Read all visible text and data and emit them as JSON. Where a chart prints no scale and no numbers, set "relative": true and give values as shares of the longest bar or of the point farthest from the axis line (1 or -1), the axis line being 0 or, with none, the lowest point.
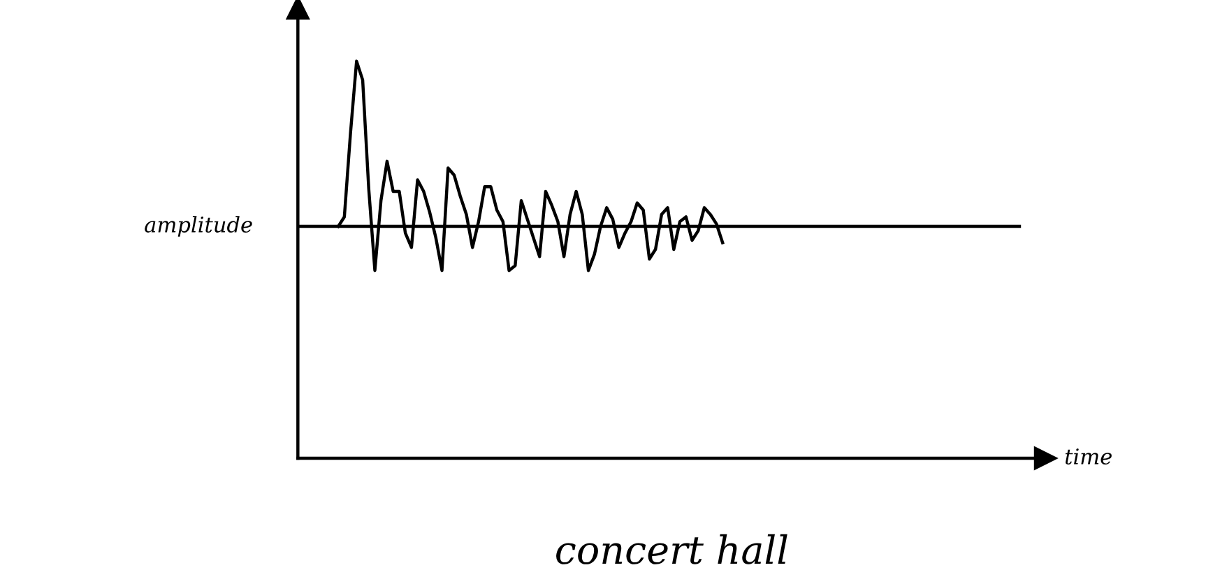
{
  "chart_data": {
    "type": "line",
    "title": "concert hall",
    "annotations": [
      "time"
    ],
    "ylabel": "amplitude",
    "relative": true,
    "categories": [
      null,
      null,
      null,
      null,
      null,
      null,
      null,
      null,
      null,
      null,
      null,
      null,
      null,
      null,
      null,
      null,
      null,
      null,
      null,
      null,
      null,
      null,
      null,
      null,
      null,
      null,
      null,
      null,
      null,
      null,
      null,
      null,
      null,
      null,
      null,
      null,
      null,
      null,
      null,
      null,
      null,
      null,
      null,
      null,
      null,
      null,
      null,
      null,
      null,
      null,
      null,
      null,
      null,
      null,
      null,
      null,
      null,
      null,
      null,
      null,
      null,
      null,
      null,
      null
    ],
    "series": [
      {
        "color": "#000000",
        "values": [
          0.584,
          0.608,
          0.818,
          1,
          0.953,
          0.678,
          0.473,
          0.649,
          0.748,
          0.672,
          0.672,
          0.567,
          0.531,
          0.701,
          0.672,
          0.619,
          0.555,
          0.473,
          0.731,
          0.713,
          0.66,
          0.614,
          0.531,
          0.596,
          0.684,
          0.684,
          0.625,
          0.596,
          0.473,
          0.485,
          0.649,
          0.602,
          0.555,
          0.508,
          0.672,
          0.637,
          0.596,
          0.508,
          0.614,
          0.672,
          0.614,
          0.473,
          0.514,
          0.584,
          0.631,
          0.602,
          0.531,
          0.567,
          0.596,
          0.643,
          0.625,
          0.502,
          0.526,
          0.614,
          0.631,
          0.526,
          0.596,
          0.608,
          0.549,
          0.573,
          0.631,
          0.614,
          0.59,
          0.543
        ]
      }
    ],
    "ref_lines": [
      {
        "axis": "y",
        "value": 0.584,
        "color": "#000000"
      }
    ]
  }
}
